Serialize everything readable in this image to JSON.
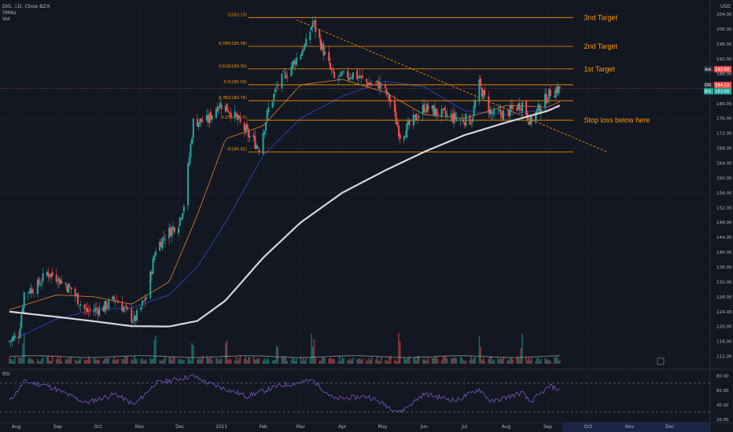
{
  "header": {
    "symbol_line": "DIS, 1D, Cboe BZX",
    "indicator_1": "SMAs",
    "indicator_2": "Vol",
    "currency": "USD"
  },
  "chart_data": {
    "type": "candlestick",
    "ticker": "DIS",
    "interval": "1D",
    "exchange": "Cboe BZX",
    "y_axis": {
      "range": [
        110,
        207
      ],
      "ticks": [
        "112.00",
        "116.00",
        "120.00",
        "124.00",
        "128.00",
        "132.00",
        "136.00",
        "140.00",
        "144.00",
        "148.00",
        "152.00",
        "156.00",
        "160.00",
        "164.00",
        "168.00",
        "172.00",
        "176.00",
        "180.00",
        "184.00",
        "188.00",
        "192.00",
        "196.00",
        "200.00",
        "204.00"
      ],
      "unit": "USD"
    },
    "x_axis_labels": [
      "Aug",
      "Sep",
      "Oct",
      "Nov",
      "Dec",
      "2021",
      "Feb",
      "Mar",
      "Apr",
      "May",
      "Jun",
      "Jul",
      "Aug",
      "Sep",
      "Oct",
      "Nov",
      "Dec"
    ],
    "price_badges": [
      {
        "label": "Ask",
        "value": "192.00",
        "color": "#ef5350"
      },
      {
        "label": "DIS",
        "value": "184.13",
        "color": "#ef5350"
      },
      {
        "label": "Bid",
        "value": "183.68",
        "color": "#26a69a"
      }
    ],
    "fibonacci_levels": [
      {
        "label": "1(203.13)",
        "value": 203.13
      },
      {
        "label": "0.786(195.38)",
        "value": 195.38
      },
      {
        "label": "0.618(189.30)",
        "value": 189.3
      },
      {
        "label": "0.5(185.03)",
        "value": 185.03
      },
      {
        "label": "0.382(180.76)",
        "value": 180.76
      },
      {
        "label": "0.236(175.5)",
        "value": 175.5
      },
      {
        "label": "0(166.92)",
        "value": 166.92
      }
    ],
    "annotations": [
      {
        "text": "3nd Target",
        "value": 203.13
      },
      {
        "text": "2nd Target",
        "value": 195.38
      },
      {
        "text": "1st Target",
        "value": 189.3
      },
      {
        "text": "Stop loss below here",
        "value": 175.5
      }
    ],
    "trendline": {
      "from": {
        "date": "2021-02-26",
        "price": 202.5
      },
      "to": {
        "date": "2021-10-15",
        "price": 167.0
      }
    },
    "sma_200_waypoints": [
      {
        "date": "2020-07-27",
        "price": 124.0
      },
      {
        "date": "2020-08-31",
        "price": 122.6
      },
      {
        "date": "2020-09-28",
        "price": 121.4
      },
      {
        "date": "2020-10-26",
        "price": 120.1
      },
      {
        "date": "2020-11-23",
        "price": 120.0
      },
      {
        "date": "2020-12-14",
        "price": 121.5
      },
      {
        "date": "2021-01-04",
        "price": 127.0
      },
      {
        "date": "2021-02-01",
        "price": 138.5
      },
      {
        "date": "2021-03-01",
        "price": 148.0
      },
      {
        "date": "2021-04-01",
        "price": 156.0
      },
      {
        "date": "2021-05-03",
        "price": 162.0
      },
      {
        "date": "2021-06-01",
        "price": 167.0
      },
      {
        "date": "2021-07-01",
        "price": 171.5
      },
      {
        "date": "2021-08-02",
        "price": 175.0
      },
      {
        "date": "2021-09-01",
        "price": 178.0
      },
      {
        "date": "2021-09-10",
        "price": 179.5
      }
    ],
    "sma_50_waypoints": [
      {
        "date": "2020-07-27",
        "price": 116.0
      },
      {
        "date": "2020-08-31",
        "price": 122.0
      },
      {
        "date": "2020-09-28",
        "price": 124.5
      },
      {
        "date": "2020-10-26",
        "price": 125.0
      },
      {
        "date": "2020-11-23",
        "price": 128.5
      },
      {
        "date": "2020-12-14",
        "price": 136.0
      },
      {
        "date": "2021-01-04",
        "price": 148.0
      },
      {
        "date": "2021-02-01",
        "price": 166.0
      },
      {
        "date": "2021-03-01",
        "price": 176.0
      },
      {
        "date": "2021-04-01",
        "price": 182.0
      },
      {
        "date": "2021-05-03",
        "price": 186.0
      },
      {
        "date": "2021-06-01",
        "price": 184.5
      },
      {
        "date": "2021-07-01",
        "price": 178.0
      },
      {
        "date": "2021-08-02",
        "price": 177.0
      },
      {
        "date": "2021-09-01",
        "price": 178.5
      },
      {
        "date": "2021-09-10",
        "price": 179.0
      }
    ],
    "sma_20_waypoints": [
      {
        "date": "2020-07-27",
        "price": 124.5
      },
      {
        "date": "2020-08-31",
        "price": 128.5
      },
      {
        "date": "2020-09-28",
        "price": 128.0
      },
      {
        "date": "2020-10-26",
        "price": 126.0
      },
      {
        "date": "2020-11-23",
        "price": 132.0
      },
      {
        "date": "2020-12-14",
        "price": 150.0
      },
      {
        "date": "2021-01-04",
        "price": 170.5
      },
      {
        "date": "2021-02-01",
        "price": 174.0
      },
      {
        "date": "2021-03-01",
        "price": 185.0
      },
      {
        "date": "2021-04-01",
        "price": 186.5
      },
      {
        "date": "2021-05-03",
        "price": 183.0
      },
      {
        "date": "2021-06-01",
        "price": 177.0
      },
      {
        "date": "2021-07-01",
        "price": 176.0
      },
      {
        "date": "2021-08-02",
        "price": 179.5
      },
      {
        "date": "2021-09-01",
        "price": 179.0
      },
      {
        "date": "2021-09-10",
        "price": 180.5
      }
    ],
    "close_waypoints": [
      {
        "date": "2020-07-27",
        "price": 116.0
      },
      {
        "date": "2020-08-03",
        "price": 118.0
      },
      {
        "date": "2020-08-07",
        "price": 129.0
      },
      {
        "date": "2020-08-17",
        "price": 131.0
      },
      {
        "date": "2020-08-24",
        "price": 134.5
      },
      {
        "date": "2020-09-01",
        "price": 133.0
      },
      {
        "date": "2020-09-11",
        "price": 130.0
      },
      {
        "date": "2020-09-22",
        "price": 124.0
      },
      {
        "date": "2020-10-05",
        "price": 125.0
      },
      {
        "date": "2020-10-14",
        "price": 127.5
      },
      {
        "date": "2020-10-28",
        "price": 121.5
      },
      {
        "date": "2020-11-06",
        "price": 128.0
      },
      {
        "date": "2020-11-13",
        "price": 141.0
      },
      {
        "date": "2020-11-20",
        "price": 144.5
      },
      {
        "date": "2020-11-30",
        "price": 148.0
      },
      {
        "date": "2020-12-04",
        "price": 153.0
      },
      {
        "date": "2020-12-11",
        "price": 175.0
      },
      {
        "date": "2020-12-22",
        "price": 175.5
      },
      {
        "date": "2020-12-30",
        "price": 180.0
      },
      {
        "date": "2021-01-08",
        "price": 178.0
      },
      {
        "date": "2021-01-20",
        "price": 172.0
      },
      {
        "date": "2021-01-29",
        "price": 168.0
      },
      {
        "date": "2021-02-05",
        "price": 178.5
      },
      {
        "date": "2021-02-12",
        "price": 185.0
      },
      {
        "date": "2021-02-22",
        "price": 190.0
      },
      {
        "date": "2021-03-05",
        "price": 196.0
      },
      {
        "date": "2021-03-10",
        "price": 202.0
      },
      {
        "date": "2021-03-19",
        "price": 193.0
      },
      {
        "date": "2021-03-26",
        "price": 186.5
      },
      {
        "date": "2021-04-09",
        "price": 188.0
      },
      {
        "date": "2021-04-20",
        "price": 185.5
      },
      {
        "date": "2021-04-30",
        "price": 185.0
      },
      {
        "date": "2021-05-07",
        "price": 180.5
      },
      {
        "date": "2021-05-14",
        "price": 171.5
      },
      {
        "date": "2021-05-21",
        "price": 174.0
      },
      {
        "date": "2021-06-01",
        "price": 179.0
      },
      {
        "date": "2021-06-15",
        "price": 177.0
      },
      {
        "date": "2021-06-25",
        "price": 176.0
      },
      {
        "date": "2021-07-06",
        "price": 175.5
      },
      {
        "date": "2021-07-12",
        "price": 185.0
      },
      {
        "date": "2021-07-21",
        "price": 177.0
      },
      {
        "date": "2021-08-02",
        "price": 177.5
      },
      {
        "date": "2021-08-13",
        "price": 180.0
      },
      {
        "date": "2021-08-19",
        "price": 175.0
      },
      {
        "date": "2021-08-26",
        "price": 179.0
      },
      {
        "date": "2021-09-03",
        "price": 183.0
      },
      {
        "date": "2021-09-10",
        "price": 184.13
      }
    ],
    "volume_spike_dates": [
      "2020-08-07",
      "2020-11-13",
      "2020-12-11",
      "2021-01-04",
      "2021-02-12",
      "2021-03-10",
      "2021-05-14",
      "2021-07-12",
      "2021-08-13"
    ],
    "rsi": {
      "title": "RSI",
      "levels": [
        70,
        30
      ],
      "ticks": [
        "80.00",
        "60.00",
        "40.00",
        "20.00"
      ],
      "range": [
        20,
        85
      ],
      "waypoints": [
        {
          "date": "2020-07-27",
          "value": 45
        },
        {
          "date": "2020-08-07",
          "value": 72
        },
        {
          "date": "2020-08-24",
          "value": 67
        },
        {
          "date": "2020-09-22",
          "value": 43
        },
        {
          "date": "2020-10-14",
          "value": 55
        },
        {
          "date": "2020-10-28",
          "value": 40
        },
        {
          "date": "2020-11-13",
          "value": 70
        },
        {
          "date": "2020-12-11",
          "value": 80
        },
        {
          "date": "2020-12-22",
          "value": 70
        },
        {
          "date": "2021-01-20",
          "value": 52
        },
        {
          "date": "2021-02-12",
          "value": 66
        },
        {
          "date": "2021-03-10",
          "value": 74
        },
        {
          "date": "2021-03-26",
          "value": 48
        },
        {
          "date": "2021-04-20",
          "value": 52
        },
        {
          "date": "2021-05-14",
          "value": 30
        },
        {
          "date": "2021-06-01",
          "value": 55
        },
        {
          "date": "2021-06-25",
          "value": 46
        },
        {
          "date": "2021-07-12",
          "value": 62
        },
        {
          "date": "2021-07-21",
          "value": 44
        },
        {
          "date": "2021-08-13",
          "value": 57
        },
        {
          "date": "2021-08-19",
          "value": 44
        },
        {
          "date": "2021-09-03",
          "value": 66
        },
        {
          "date": "2021-09-10",
          "value": 60
        }
      ]
    },
    "x_range": {
      "start": "2020-07-20",
      "end": "2021-12-31"
    },
    "colors": {
      "background": "#131722",
      "grid": "#1e222d",
      "up": "#26a69a",
      "down": "#ef5350",
      "fib": "#ff9800",
      "trend": "#ff9800",
      "sma200": "#d7d7d7",
      "sma50": "#2a40a8",
      "sma20": "#c77a2c",
      "rsi": "#7e57c2",
      "axis_text": "#b2b5be",
      "future_band": "#1c2545"
    }
  }
}
